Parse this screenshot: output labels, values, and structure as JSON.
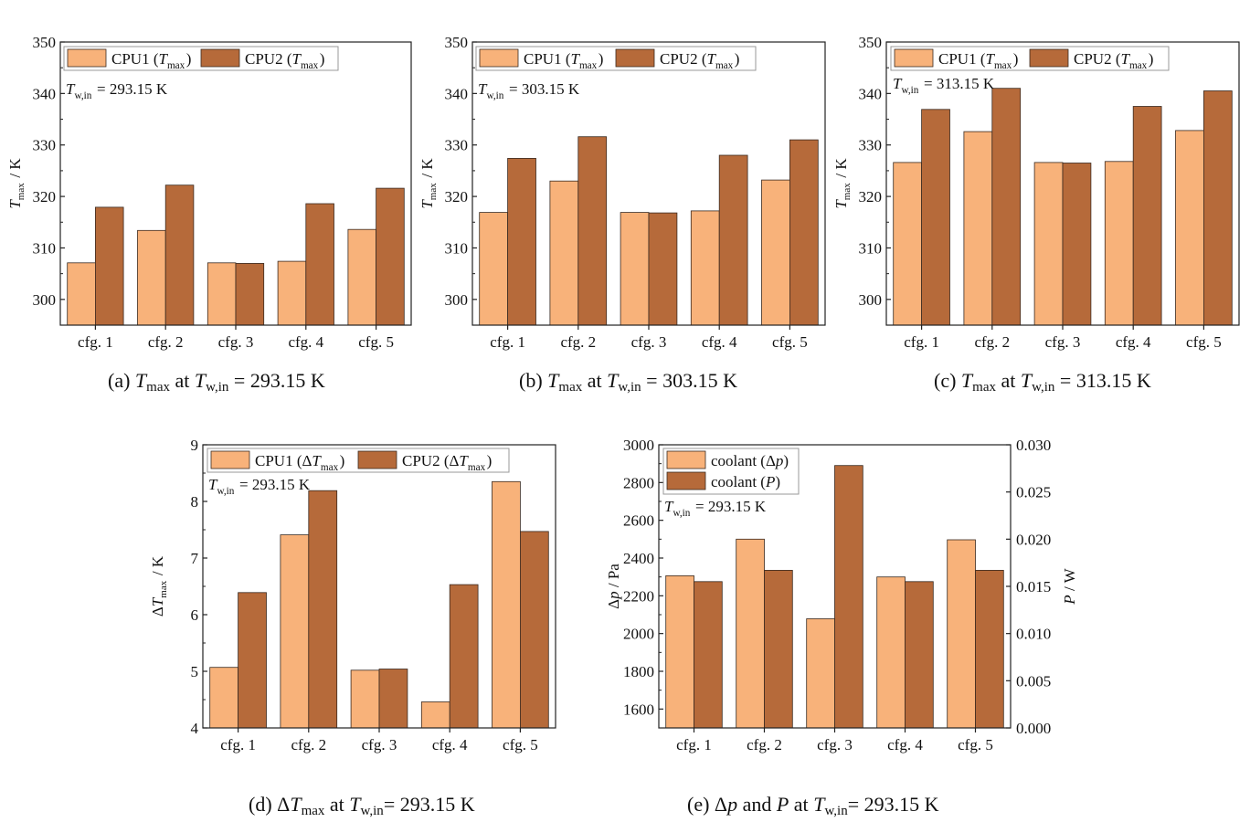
{
  "colors": {
    "cpu1": "#f8b27a",
    "cpu2": "#b66a3a",
    "axis": "#222222",
    "stroke": "#3a2a20"
  },
  "chart_data": [
    {
      "id": "a",
      "type": "bar",
      "title": "(a) Tmax at Tw,in = 293.15 K",
      "caption": {
        "prefix": "(a) ",
        "sym": "T",
        "sub": "max",
        "mid": " at ",
        "sym2": "T",
        "sub2": "w,in",
        "suffix": " = 293.15 K"
      },
      "ylabel": "Tmax / K",
      "ylabel_sym": "T",
      "ylabel_sub": "max",
      "ylabel_unit": " / K",
      "ylim": [
        295,
        350
      ],
      "yticks": [
        300,
        310,
        320,
        330,
        340,
        350
      ],
      "categories": [
        "cfg. 1",
        "cfg. 2",
        "cfg. 3",
        "cfg. 4",
        "cfg. 5"
      ],
      "series": [
        {
          "name": "CPU1 (Tmax)",
          "sym": "T",
          "sub": "max",
          "prefix": "CPU1 (",
          "values": [
            307.1,
            313.4,
            307.1,
            307.4,
            313.6
          ]
        },
        {
          "name": "CPU2 (Tmax)",
          "sym": "T",
          "sub": "max",
          "prefix": "CPU2 (",
          "values": [
            317.9,
            322.2,
            307.0,
            318.6,
            321.6
          ]
        }
      ],
      "annotation": {
        "sym": "T",
        "sub": "w,in",
        "text": " = 293.15 K"
      }
    },
    {
      "id": "b",
      "type": "bar",
      "title": "(b) Tmax at Tw,in = 303.15 K",
      "caption": {
        "prefix": "(b) ",
        "sym": "T",
        "sub": "max",
        "mid": " at ",
        "sym2": "T",
        "sub2": "w,in",
        "suffix": " = 303.15 K"
      },
      "ylabel": "Tmax / K",
      "ylabel_sym": "T",
      "ylabel_sub": "max",
      "ylabel_unit": " / K",
      "ylim": [
        295,
        350
      ],
      "yticks": [
        300,
        310,
        320,
        330,
        340,
        350
      ],
      "categories": [
        "cfg. 1",
        "cfg. 2",
        "cfg. 3",
        "cfg. 4",
        "cfg. 5"
      ],
      "series": [
        {
          "name": "CPU1 (Tmax)",
          "sym": "T",
          "sub": "max",
          "prefix": "CPU1 (",
          "values": [
            316.9,
            323.0,
            316.9,
            317.2,
            323.2
          ]
        },
        {
          "name": "CPU2 (Tmax)",
          "sym": "T",
          "sub": "max",
          "prefix": "CPU2 (",
          "values": [
            327.4,
            331.6,
            316.8,
            328.0,
            331.0
          ]
        }
      ],
      "annotation": {
        "sym": "T",
        "sub": "w,in",
        "text": " = 303.15 K"
      }
    },
    {
      "id": "c",
      "type": "bar",
      "title": "(c) Tmax at Tw,in = 313.15 K",
      "caption": {
        "prefix": "(c) ",
        "sym": "T",
        "sub": "max",
        "mid": " at ",
        "sym2": "T",
        "sub2": "w,in",
        "suffix": " = 313.15 K"
      },
      "ylabel": "Tmax / K",
      "ylabel_sym": "T",
      "ylabel_sub": "max",
      "ylabel_unit": " / K",
      "ylim": [
        295,
        350
      ],
      "yticks": [
        300,
        310,
        320,
        330,
        340,
        350
      ],
      "categories": [
        "cfg. 1",
        "cfg. 2",
        "cfg. 3",
        "cfg. 4",
        "cfg. 5"
      ],
      "series": [
        {
          "name": "CPU1 (Tmax)",
          "sym": "T",
          "sub": "max",
          "prefix": "CPU1 (",
          "values": [
            326.6,
            332.6,
            326.6,
            326.8,
            332.8
          ]
        },
        {
          "name": "CPU2 (Tmax)",
          "sym": "T",
          "sub": "max",
          "prefix": "CPU2 (",
          "values": [
            336.9,
            341.0,
            326.5,
            337.5,
            340.5
          ]
        }
      ],
      "annotation": {
        "sym": "T",
        "sub": "w,in",
        "text": " = 313.15 K"
      }
    },
    {
      "id": "d",
      "type": "bar",
      "title": "(d) ΔTmax at Tw,in= 293.15 K",
      "caption": {
        "prefix": "(d) Δ",
        "sym": "T",
        "sub": "max",
        "mid": " at ",
        "sym2": "T",
        "sub2": "w,in",
        "suffix": "= 293.15 K"
      },
      "ylabel": "ΔTmax / K",
      "ylabel_pre": "Δ",
      "ylabel_sym": "T",
      "ylabel_sub": "max",
      "ylabel_unit": " / K",
      "ylim": [
        4,
        9
      ],
      "yticks": [
        4,
        5,
        6,
        7,
        8,
        9
      ],
      "categories": [
        "cfg. 1",
        "cfg. 2",
        "cfg. 3",
        "cfg. 4",
        "cfg. 5"
      ],
      "series": [
        {
          "name": "CPU1 (ΔTmax)",
          "sym": "T",
          "sub": "max",
          "prefix": "CPU1 (Δ",
          "values": [
            5.07,
            7.41,
            5.02,
            4.46,
            8.35
          ]
        },
        {
          "name": "CPU2 (ΔTmax)",
          "sym": "T",
          "sub": "max",
          "prefix": "CPU2 (Δ",
          "values": [
            6.39,
            8.19,
            5.04,
            6.53,
            7.47
          ]
        }
      ],
      "annotation": {
        "sym": "T",
        "sub": "w,in",
        "text": " = 293.15 K"
      }
    },
    {
      "id": "e",
      "type": "bar",
      "title": "(e) Δp and P at Tw,in= 293.15 K",
      "caption": {
        "prefix": "(e) Δ",
        "sym": "p",
        "sub": "",
        "mid": " and ",
        "mid_sym": "P",
        "mid2": " at ",
        "sym2": "T",
        "sub2": "w,in",
        "suffix": "= 293.15 K"
      },
      "ylabel": "Δp / Pa",
      "ylabel_pre": "Δ",
      "ylabel_sym": "p",
      "ylabel_sub": "",
      "ylabel_unit": " / Pa",
      "y2label": "P / W",
      "ylim": [
        1500,
        3000
      ],
      "yticks": [
        1600,
        1800,
        2000,
        2200,
        2400,
        2600,
        2800,
        3000
      ],
      "y2lim": [
        0,
        0.03
      ],
      "y2ticks": [
        "0.000",
        "0.005",
        "0.010",
        "0.015",
        "0.020",
        "0.025",
        "0.030"
      ],
      "categories": [
        "cfg. 1",
        "cfg. 2",
        "cfg. 3",
        "cfg. 4",
        "cfg. 5"
      ],
      "series": [
        {
          "name": "coolant (Δp)",
          "prefix": "coolant (Δ",
          "sym": "p",
          "sub": "",
          "axis": "left",
          "values": [
            2306,
            2500,
            2078,
            2300,
            2497
          ]
        },
        {
          "name": "coolant (P)",
          "prefix": "coolant (",
          "sym": "P",
          "sub": "",
          "axis": "right",
          "values": [
            0.0155,
            0.0167,
            0.0278,
            0.0155,
            0.0167
          ]
        }
      ],
      "annotation": {
        "sym": "T",
        "sub": "w,in",
        "text": " = 293.15 K"
      }
    }
  ]
}
